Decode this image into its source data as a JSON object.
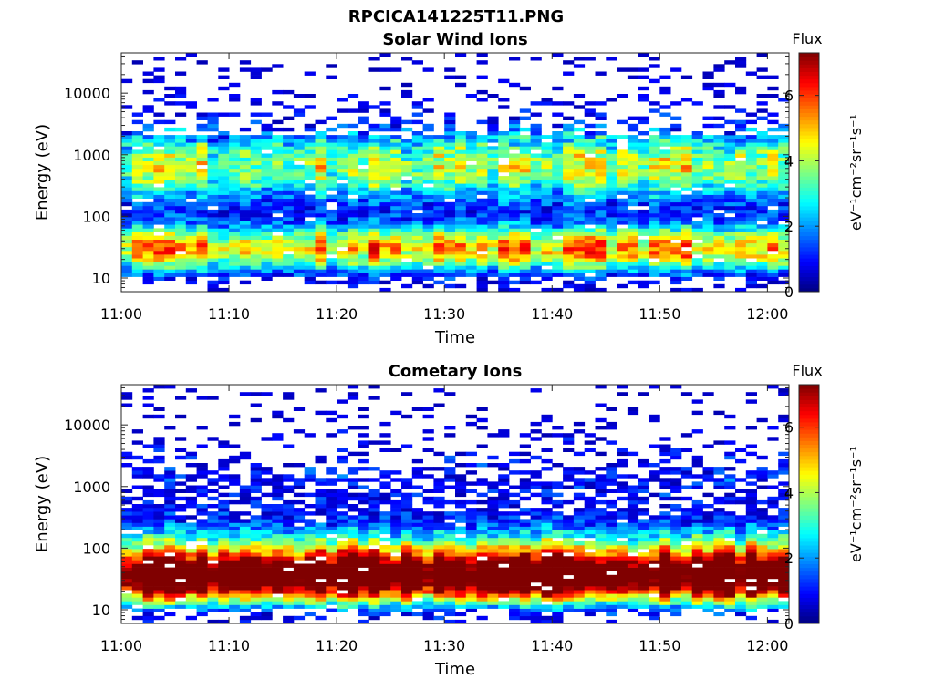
{
  "figure_title": "RPCICA141225T11.PNG",
  "chart_data": [
    {
      "type": "heatmap",
      "title": "Solar Wind Ions",
      "xlabel": "Time",
      "ylabel": "Energy (eV)",
      "x_ticks": [
        "11:00",
        "11:10",
        "11:20",
        "11:30",
        "11:40",
        "11:50",
        "12:00"
      ],
      "x_range": [
        "11:00",
        "12:02"
      ],
      "y_scale": "log",
      "y_ticks": [
        10,
        100,
        1000,
        10000
      ],
      "y_tick_labels": [
        "10",
        "100",
        "1000",
        "10000"
      ],
      "y_range": [
        6,
        45000
      ],
      "colorbar": {
        "title": "Flux",
        "label": "eV⁻¹cm⁻²sr⁻¹s⁻¹",
        "range": [
          0,
          7.3
        ],
        "ticks": [
          0,
          2,
          4,
          6
        ],
        "colormap": "jet"
      },
      "peak_energy_eV": 30,
      "peak_flux": 5.4,
      "secondary_peak_energy_eV": 600,
      "secondary_peak_flux": 3.8
    },
    {
      "type": "heatmap",
      "title": "Cometary Ions",
      "xlabel": "Time",
      "ylabel": "Energy (eV)",
      "x_ticks": [
        "11:00",
        "11:10",
        "11:20",
        "11:30",
        "11:40",
        "11:50",
        "12:00"
      ],
      "x_range": [
        "11:00",
        "12:02"
      ],
      "y_scale": "log",
      "y_ticks": [
        10,
        100,
        1000,
        10000
      ],
      "y_tick_labels": [
        "10",
        "100",
        "1000",
        "10000"
      ],
      "y_range": [
        6,
        45000
      ],
      "colorbar": {
        "title": "Flux",
        "label": "eV⁻¹cm⁻²sr⁻¹s⁻¹",
        "range": [
          0,
          7.3
        ],
        "ticks": [
          0,
          2,
          4,
          6
        ],
        "colormap": "jet"
      },
      "peak_energy_eV": 30,
      "peak_flux": 6.3,
      "secondary_peak_energy_eV": 60,
      "secondary_peak_flux": 5.0
    }
  ]
}
